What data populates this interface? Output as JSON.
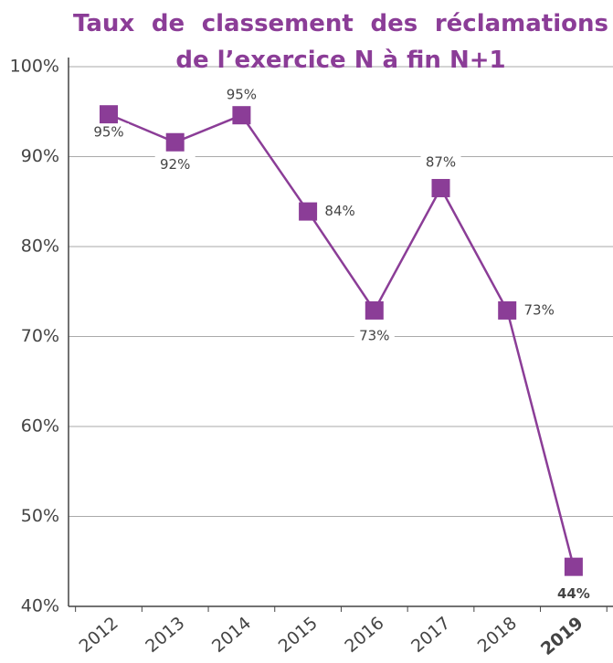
{
  "chart_data": {
    "type": "line",
    "title": "Taux de classement des réclamations de l’exercice N à fin N+1",
    "categories": [
      "2012",
      "2013",
      "2014",
      "2015",
      "2016",
      "2017",
      "2018",
      "2019"
    ],
    "series": [
      {
        "name": "Taux de classement",
        "color": "#8b3d97",
        "values": [
          94.7,
          91.6,
          94.6,
          83.9,
          72.9,
          86.5,
          72.9,
          44.4
        ],
        "value_labels": [
          "95%",
          "92%",
          "95%",
          "84%",
          "73%",
          "87%",
          "73%",
          "44%"
        ]
      }
    ],
    "ylim": [
      40,
      100
    ],
    "yticks": [
      {
        "value": 40,
        "label": "40%"
      },
      {
        "value": 50,
        "label": "50%"
      },
      {
        "value": 60,
        "label": "60%"
      },
      {
        "value": 70,
        "label": "70%"
      },
      {
        "value": 80,
        "label": "80%"
      },
      {
        "value": 90,
        "label": "90%"
      },
      {
        "value": 100,
        "label": "100%"
      }
    ],
    "grid": true
  }
}
